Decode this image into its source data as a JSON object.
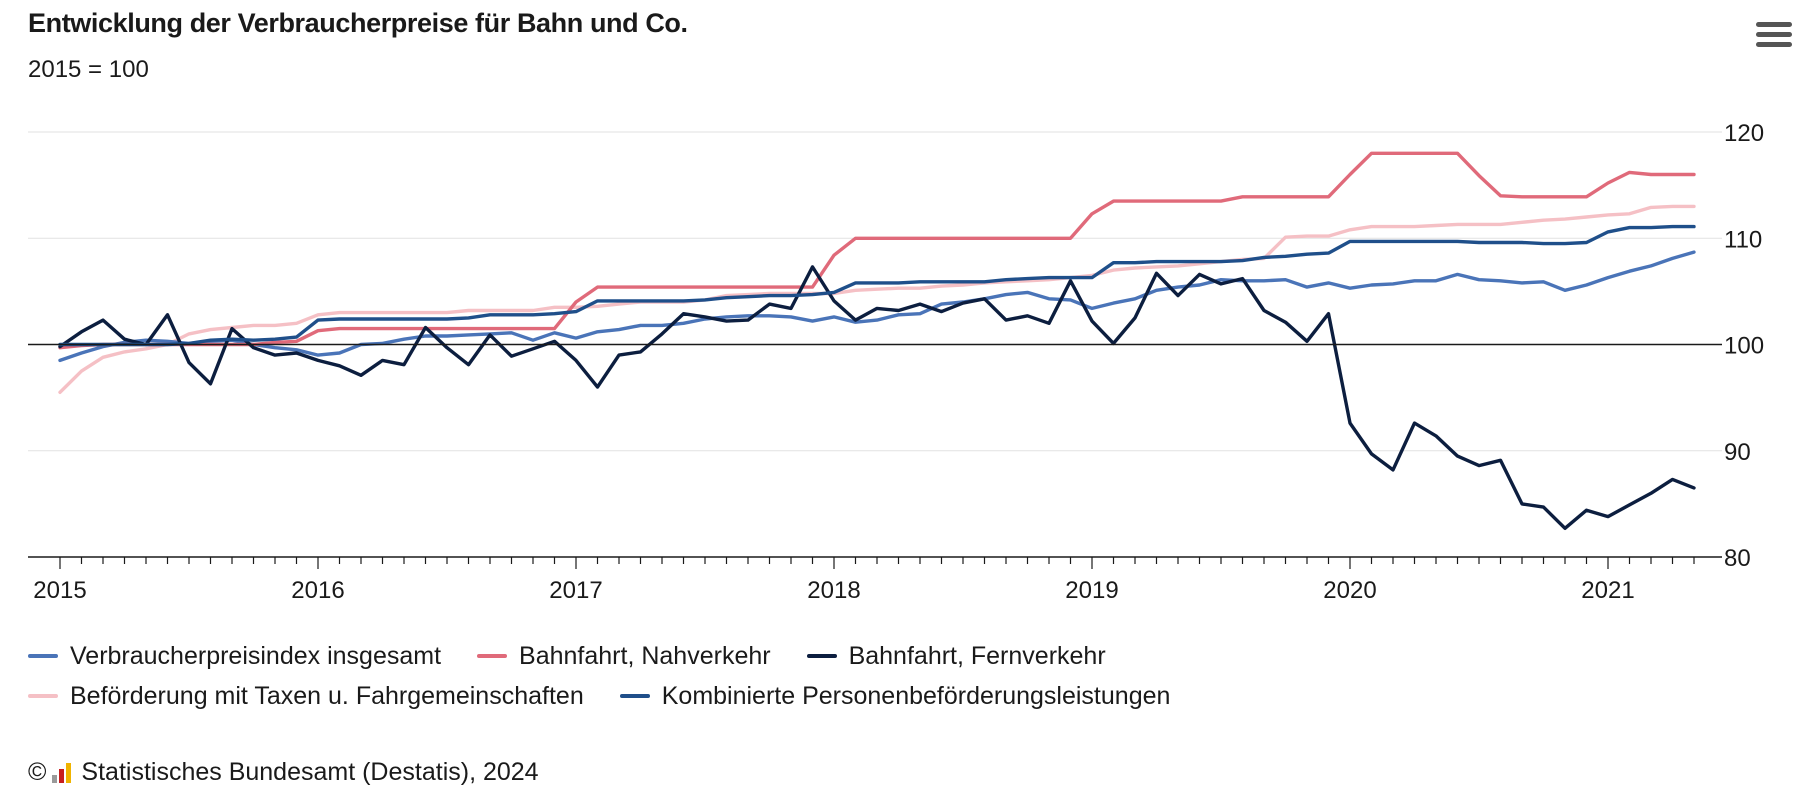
{
  "header": {
    "title": "Entwicklung der Verbraucherpreise für Bahn und Co.",
    "subtitle": "2015 = 100"
  },
  "menu": {
    "icon": "hamburger-menu-icon"
  },
  "credit": {
    "symbol": "©",
    "logo_icon": "destatis-logo-icon",
    "text": "Statistisches Bundesamt (Destatis), 2024"
  },
  "chart_data": {
    "type": "line",
    "title": "Entwicklung der Verbraucherpreise für Bahn und Co.",
    "subtitle": "2015 = 100",
    "x_start": "2015-01",
    "x_end": "2021-05",
    "x_ticks": [
      "2015",
      "2016",
      "2017",
      "2018",
      "2019",
      "2020",
      "2021"
    ],
    "ylim": [
      80,
      120
    ],
    "y_ticks": [
      80,
      90,
      100,
      110,
      120
    ],
    "reference_line": 100,
    "grid": true,
    "legend_position": "bottom",
    "series": [
      {
        "name": "Beförderung mit Taxen u. Fahrgemeinschaften",
        "color": "#f5c0c5",
        "values": [
          95.5,
          97.5,
          98.8,
          99.3,
          99.6,
          100.0,
          101.0,
          101.4,
          101.6,
          101.8,
          101.8,
          102.0,
          102.8,
          103.0,
          103.0,
          103.0,
          103.0,
          103.0,
          103.0,
          103.2,
          103.2,
          103.2,
          103.2,
          103.5,
          103.5,
          103.6,
          103.8,
          104.0,
          104.0,
          104.0,
          104.2,
          104.6,
          104.7,
          104.8,
          104.8,
          104.8,
          104.8,
          105.1,
          105.2,
          105.3,
          105.3,
          105.5,
          105.6,
          105.8,
          105.9,
          106.0,
          106.1,
          106.3,
          106.5,
          107.0,
          107.2,
          107.3,
          107.4,
          107.6,
          107.8,
          108.0,
          108.1,
          110.1,
          110.2,
          110.2,
          110.8,
          111.1,
          111.1,
          111.1,
          111.2,
          111.3,
          111.3,
          111.3,
          111.5,
          111.7,
          111.8,
          112.0,
          112.2,
          112.3,
          112.9,
          113.0,
          113.0
        ]
      },
      {
        "name": "Verbraucherpreisindex insgesamt",
        "color": "#4a74b8",
        "values": [
          98.5,
          99.2,
          99.8,
          100.2,
          100.4,
          100.3,
          100.1,
          100.3,
          100.4,
          100.0,
          99.7,
          99.5,
          99.0,
          99.2,
          100.0,
          100.1,
          100.5,
          100.8,
          100.8,
          100.9,
          101.0,
          101.1,
          100.4,
          101.1,
          100.6,
          101.2,
          101.4,
          101.8,
          101.8,
          102.0,
          102.4,
          102.6,
          102.7,
          102.7,
          102.6,
          102.2,
          102.6,
          102.1,
          102.3,
          102.8,
          102.9,
          103.8,
          104.0,
          104.3,
          104.7,
          104.9,
          104.3,
          104.2,
          103.4,
          103.9,
          104.3,
          105.1,
          105.4,
          105.6,
          106.1,
          106.0,
          106.0,
          106.1,
          105.4,
          105.8,
          105.3,
          105.6,
          105.7,
          106.0,
          106.0,
          106.6,
          106.1,
          106.0,
          105.8,
          105.9,
          105.1,
          105.6,
          106.3,
          106.9,
          107.4,
          108.1,
          108.7
        ]
      },
      {
        "name": "Bahnfahrt, Nahverkehr",
        "color": "#e06a7a",
        "values": [
          99.7,
          99.9,
          100.0,
          100.0,
          100.0,
          100.0,
          100.0,
          100.0,
          100.0,
          100.0,
          100.2,
          100.3,
          101.3,
          101.5,
          101.5,
          101.5,
          101.5,
          101.5,
          101.5,
          101.5,
          101.5,
          101.5,
          101.5,
          101.5,
          104.0,
          105.4,
          105.4,
          105.4,
          105.4,
          105.4,
          105.4,
          105.4,
          105.4,
          105.4,
          105.4,
          105.4,
          108.4,
          110.0,
          110.0,
          110.0,
          110.0,
          110.0,
          110.0,
          110.0,
          110.0,
          110.0,
          110.0,
          110.0,
          112.3,
          113.5,
          113.5,
          113.5,
          113.5,
          113.5,
          113.5,
          113.9,
          113.9,
          113.9,
          113.9,
          113.9,
          116.0,
          118.0,
          118.0,
          118.0,
          118.0,
          118.0,
          115.9,
          114.0,
          113.9,
          113.9,
          113.9,
          113.9,
          115.2,
          116.2,
          116.0,
          116.0,
          116.0
        ]
      },
      {
        "name": "Bahnfahrt, Fernverkehr",
        "color": "#0c1e3f",
        "values": [
          99.8,
          101.2,
          102.3,
          100.5,
          100.0,
          102.8,
          98.3,
          96.3,
          101.5,
          99.7,
          99.0,
          99.2,
          98.5,
          98.0,
          97.1,
          98.5,
          98.1,
          101.6,
          99.7,
          98.1,
          100.9,
          98.9,
          99.6,
          100.3,
          98.5,
          96.0,
          99.0,
          99.3,
          101.0,
          102.9,
          102.6,
          102.2,
          102.3,
          103.8,
          103.4,
          107.3,
          104.1,
          102.3,
          103.4,
          103.2,
          103.8,
          103.1,
          103.9,
          104.3,
          102.3,
          102.7,
          102.0,
          106.0,
          102.2,
          100.1,
          102.5,
          106.7,
          104.6,
          106.6,
          105.7,
          106.2,
          103.2,
          102.1,
          100.3,
          102.9,
          92.6,
          89.7,
          88.2,
          92.6,
          91.4,
          89.5,
          88.6,
          89.1,
          85.0,
          84.7,
          82.7,
          84.4,
          83.8,
          84.9,
          86.0,
          87.3,
          86.5
        ]
      },
      {
        "name": "Kombinierte Personenbeförderungsleistungen",
        "color": "#1f4f8a",
        "values": [
          100.0,
          100.0,
          100.0,
          100.0,
          100.0,
          100.0,
          100.1,
          100.4,
          100.5,
          100.4,
          100.5,
          100.7,
          102.3,
          102.4,
          102.4,
          102.4,
          102.4,
          102.4,
          102.4,
          102.5,
          102.8,
          102.8,
          102.8,
          102.9,
          103.1,
          104.1,
          104.1,
          104.1,
          104.1,
          104.1,
          104.2,
          104.4,
          104.5,
          104.6,
          104.6,
          104.7,
          104.9,
          105.8,
          105.8,
          105.8,
          105.9,
          105.9,
          105.9,
          105.9,
          106.1,
          106.2,
          106.3,
          106.3,
          106.3,
          107.7,
          107.7,
          107.8,
          107.8,
          107.8,
          107.8,
          107.9,
          108.2,
          108.3,
          108.5,
          108.6,
          109.7,
          109.7,
          109.7,
          109.7,
          109.7,
          109.7,
          109.6,
          109.6,
          109.6,
          109.5,
          109.5,
          109.6,
          110.6,
          111.0,
          111.0,
          111.1,
          111.1
        ]
      }
    ]
  }
}
